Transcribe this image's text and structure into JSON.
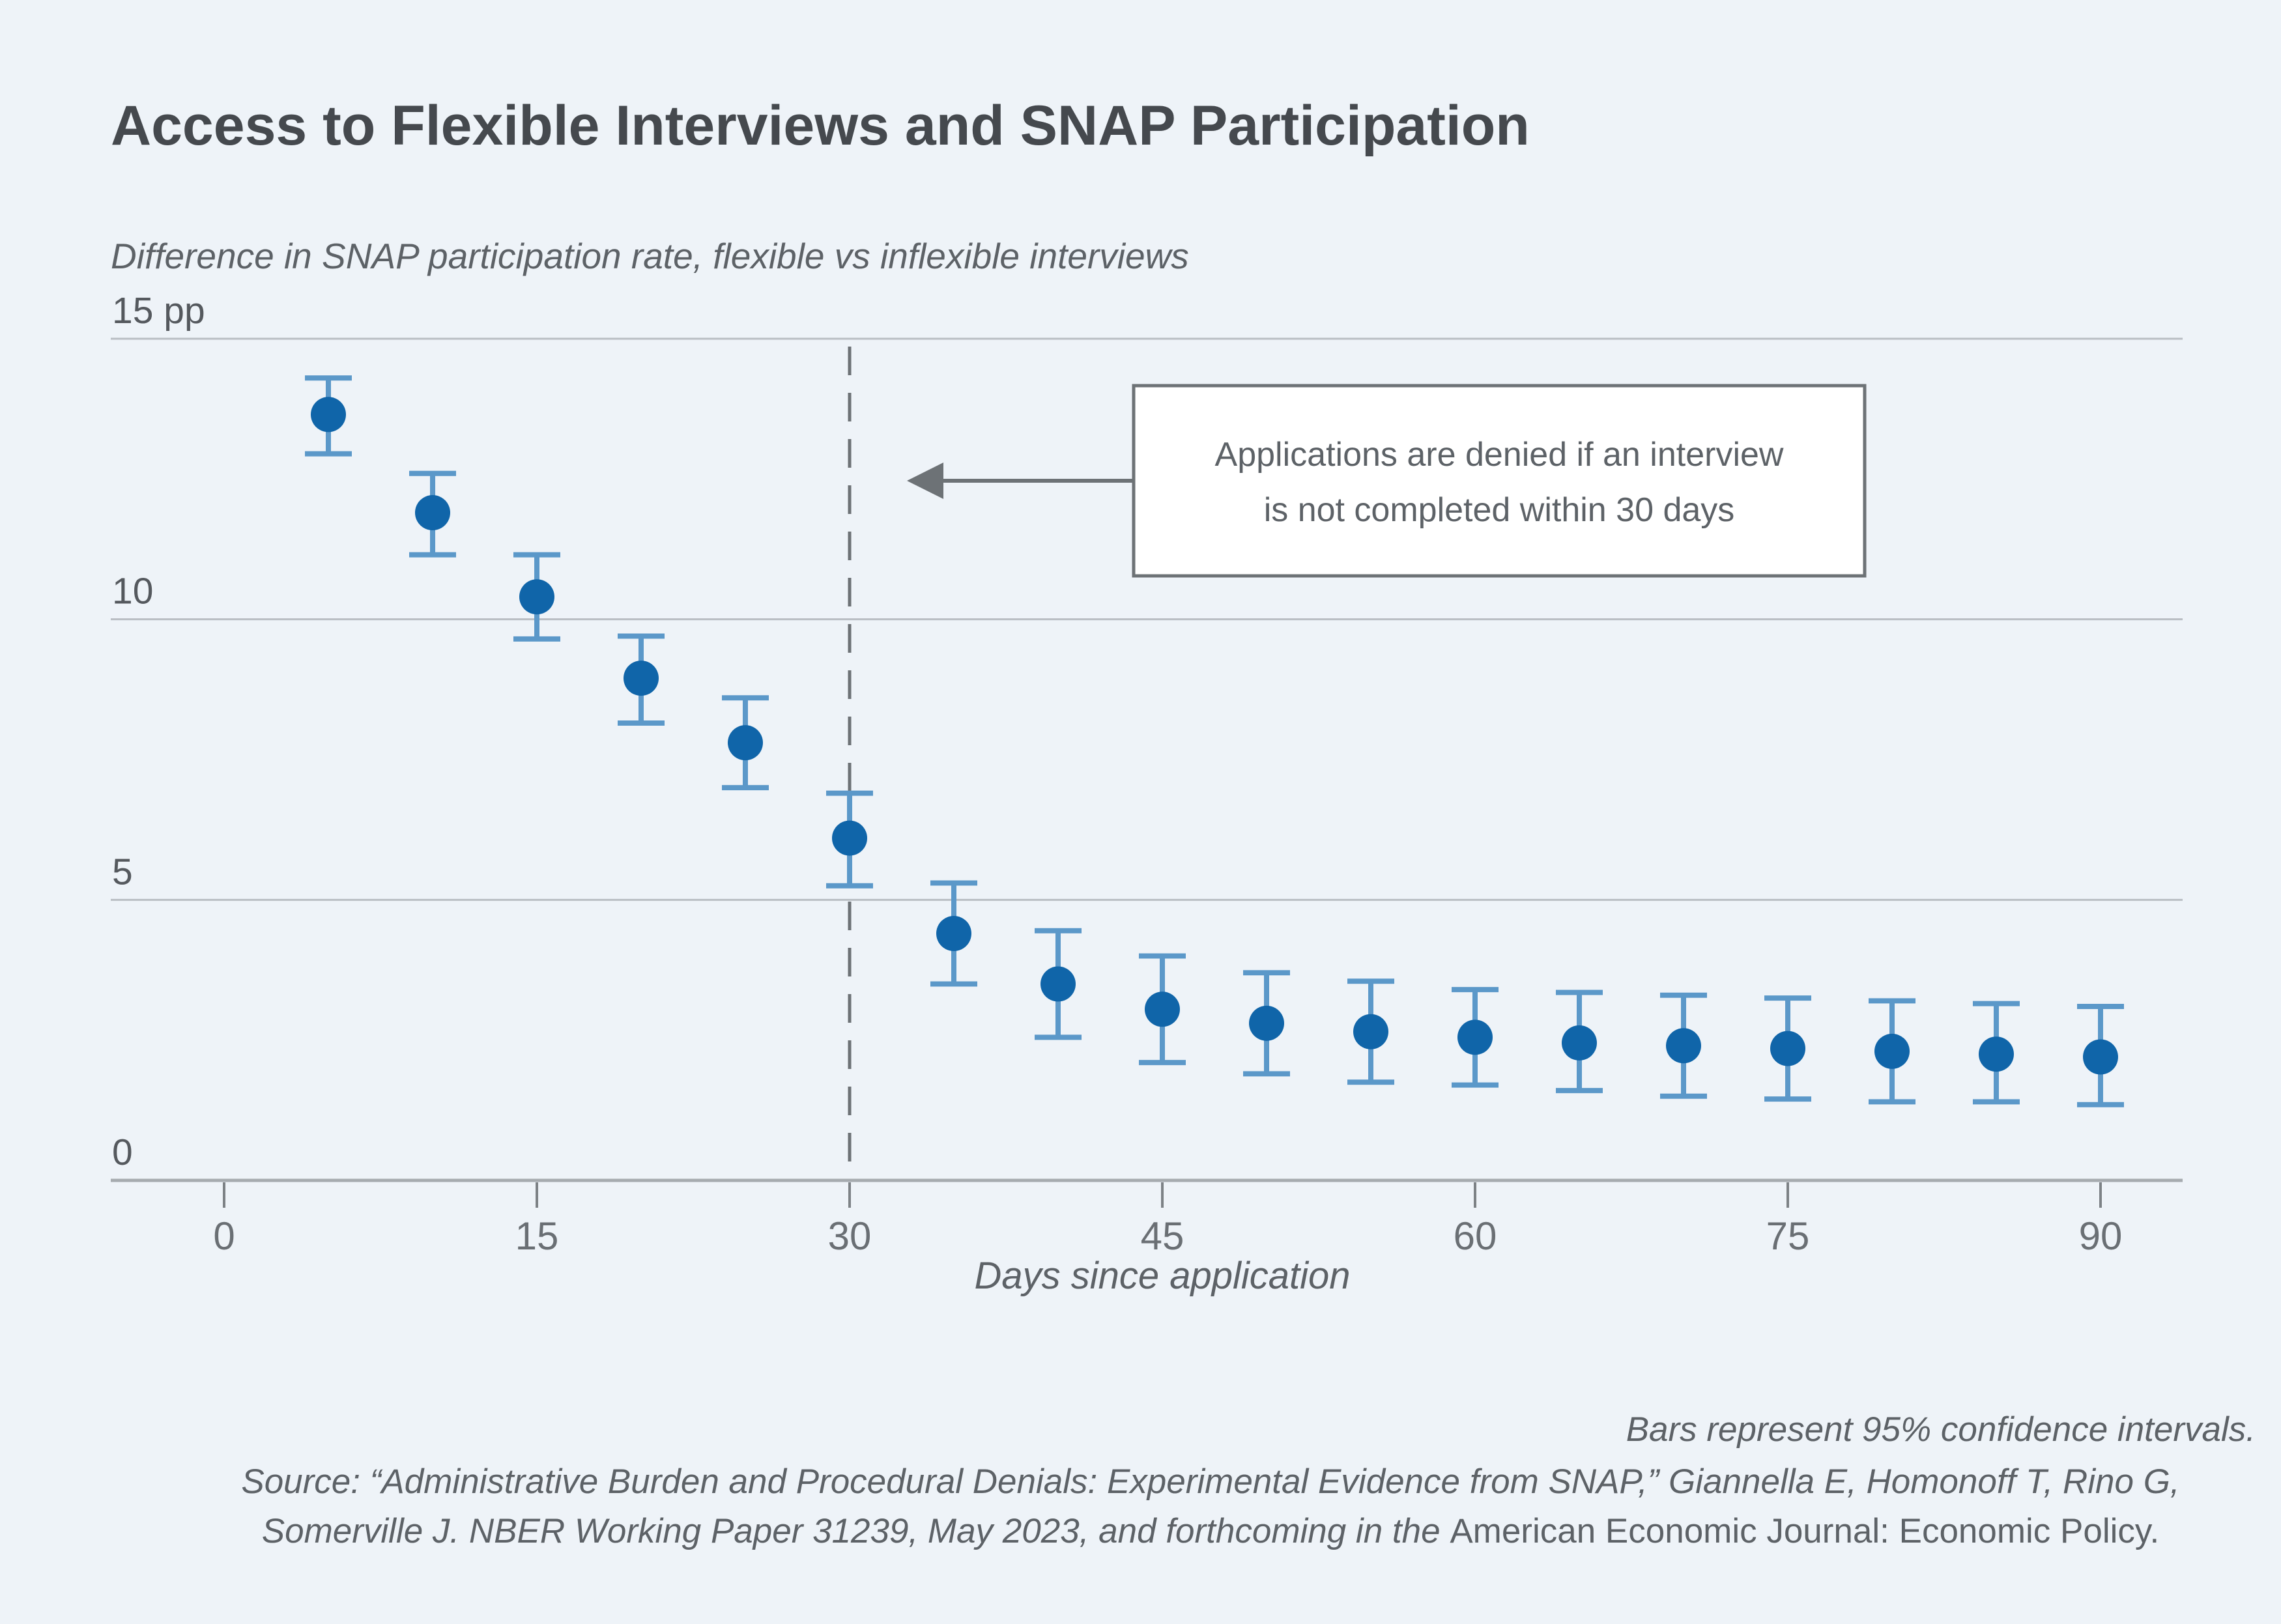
{
  "page": {
    "background": "#eef3f8"
  },
  "header": {
    "title": "Access to Flexible Interviews and SNAP Participation",
    "subtitle": "Difference in SNAP participation rate, flexible vs inflexible interviews"
  },
  "annotation": {
    "line1": "Applications are denied if an interview",
    "line2": "is not completed within 30 days",
    "arrow_points_to_day": 30
  },
  "footnotes": {
    "note": "Bars represent 95% confidence intervals.",
    "source_line1": "Source: “Administrative Burden and Procedural Denials: Experimental Evidence from SNAP,” Giannella E, Homonoff T, Rino G,",
    "source_line2_italic": "Somerville J. NBER Working Paper 31239, May 2023, and forthcoming in the ",
    "source_line2_roman": "American Economic Journal: Economic Policy."
  },
  "chart_data": {
    "type": "scatter",
    "title": "Access to Flexible Interviews and SNAP Participation",
    "subtitle": "Difference in SNAP participation rate, flexible vs inflexible interviews",
    "xlabel": "Days since application",
    "ylabel": "Difference in SNAP participation rate, flexible vs inflexible interviews (pp)",
    "x": [
      5,
      10,
      15,
      20,
      25,
      30,
      35,
      40,
      45,
      50,
      55,
      60,
      65,
      70,
      75,
      80,
      85,
      90
    ],
    "series": [
      {
        "name": "Difference in SNAP participation rate, flexible vs inflexible interviews",
        "values": [
          13.65,
          11.9,
          10.4,
          8.95,
          7.8,
          6.1,
          4.4,
          3.5,
          3.05,
          2.8,
          2.65,
          2.55,
          2.45,
          2.4,
          2.35,
          2.3,
          2.25,
          2.2
        ],
        "ci_low": [
          12.95,
          11.15,
          9.65,
          8.15,
          7.0,
          5.25,
          3.5,
          2.55,
          2.1,
          1.9,
          1.75,
          1.7,
          1.6,
          1.5,
          1.45,
          1.4,
          1.4,
          1.35
        ],
        "ci_high": [
          14.3,
          12.6,
          11.15,
          9.7,
          8.6,
          6.9,
          5.3,
          4.45,
          4.0,
          3.7,
          3.55,
          3.4,
          3.35,
          3.3,
          3.25,
          3.2,
          3.15,
          3.1
        ]
      }
    ],
    "error_bars": "95% confidence intervals",
    "xticks": [
      0,
      15,
      30,
      45,
      60,
      75,
      90
    ],
    "yticks": [
      {
        "value": 15,
        "label": "15 pp"
      },
      {
        "value": 10,
        "label": "10"
      },
      {
        "value": 5,
        "label": "5"
      },
      {
        "value": 0,
        "label": "0"
      }
    ],
    "xlim": [
      -5.4,
      94.2
    ],
    "ylim": [
      0,
      15
    ],
    "grid": true,
    "legend_position": "none",
    "reference_line": {
      "x": 30,
      "style": "dashed"
    },
    "colors": {
      "background": "#eef3f8",
      "point": "#1065a9",
      "error_bar": "#5b98c9",
      "gridline": "#b9bec3",
      "axis": "#a6abaf",
      "tick": "#7d8286",
      "reference_line": "#6d7276",
      "annotation_border": "#6d7276",
      "annotation_bg": "#ffffff",
      "title_text": "#45494e",
      "body_text": "#5d6267",
      "tick_label_text": "#6a6f74"
    }
  }
}
